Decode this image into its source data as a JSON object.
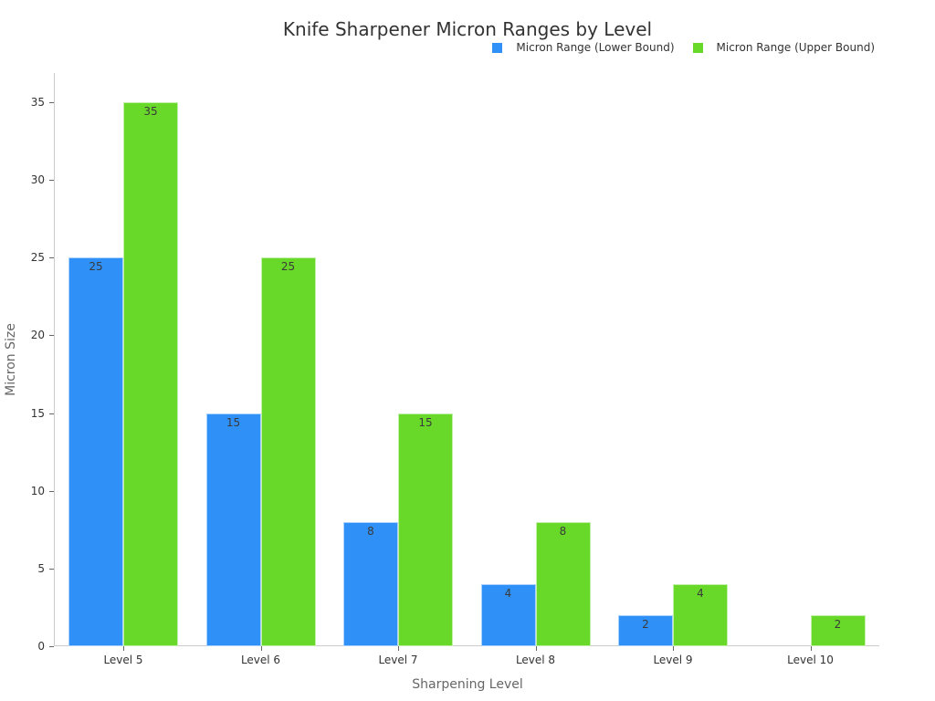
{
  "chart_data": {
    "type": "bar",
    "title": "Knife Sharpener Micron Ranges by Level",
    "xlabel": "Sharpening Level",
    "ylabel": "Micron Size",
    "categories": [
      "Level 5",
      "Level 6",
      "Level 7",
      "Level 8",
      "Level 9",
      "Level 10"
    ],
    "series": [
      {
        "name": "Micron Range (Lower Bound)",
        "color": "#2f90f7",
        "values": [
          25,
          15,
          8,
          4,
          2,
          0
        ]
      },
      {
        "name": "Micron Range (Upper Bound)",
        "color": "#68d928",
        "values": [
          35,
          25,
          15,
          8,
          4,
          2
        ]
      }
    ],
    "yticks": [
      0,
      5,
      10,
      15,
      20,
      25,
      30,
      35
    ],
    "ylim": [
      0,
      37
    ],
    "grid": false,
    "legend_position": "top-right",
    "data_labels": true
  }
}
